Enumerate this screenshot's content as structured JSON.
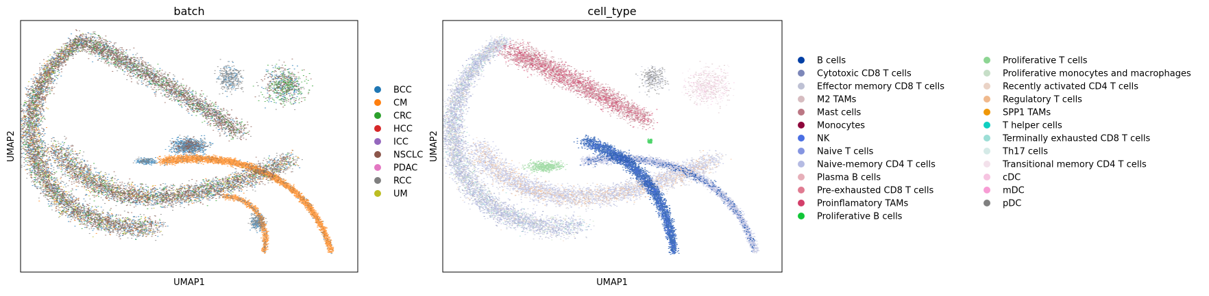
{
  "chart_data": [
    {
      "type": "scatter",
      "title": "batch",
      "xlabel": "UMAP1",
      "ylabel": "UMAP2",
      "grid": false,
      "legend_placement": "right",
      "series": [
        {
          "name": "BCC",
          "color": "#1f77b4"
        },
        {
          "name": "CM",
          "color": "#ff7f0e"
        },
        {
          "name": "CRC",
          "color": "#2ca02c"
        },
        {
          "name": "HCC",
          "color": "#d62728"
        },
        {
          "name": "ICC",
          "color": "#9467bd"
        },
        {
          "name": "NSCLC",
          "color": "#8c564b"
        },
        {
          "name": "PDAC",
          "color": "#e377c2"
        },
        {
          "name": "RCC",
          "color": "#7f7f7f"
        },
        {
          "name": "UM",
          "color": "#bcbd22"
        }
      ]
    },
    {
      "type": "scatter",
      "title": "cell_type",
      "xlabel": "UMAP1",
      "ylabel": "UMAP2",
      "grid": false,
      "legend_placement": "right",
      "series": [
        {
          "name": "B cells",
          "color": "#023fa5"
        },
        {
          "name": "Cytotoxic CD8 T cells",
          "color": "#7d87b9"
        },
        {
          "name": "Effector memory CD8 T cells",
          "color": "#bec1d4"
        },
        {
          "name": "M2 TAMs",
          "color": "#d6bcc0"
        },
        {
          "name": "Mast cells",
          "color": "#bb7784"
        },
        {
          "name": "Monocytes",
          "color": "#8e063b"
        },
        {
          "name": "NK",
          "color": "#4a6fe3"
        },
        {
          "name": "Naive T cells",
          "color": "#8595e1"
        },
        {
          "name": "Naive-memory CD4 T cells",
          "color": "#b5bbe3"
        },
        {
          "name": "Plasma B cells",
          "color": "#e6afb9"
        },
        {
          "name": "Pre-exhausted CD8 T cells",
          "color": "#e07b91"
        },
        {
          "name": "Proinflamatory TAMs",
          "color": "#d33f6a"
        },
        {
          "name": "Proliferative B cells",
          "color": "#11c638"
        },
        {
          "name": "Proliferative T cells",
          "color": "#8dd593"
        },
        {
          "name": "Proliferative monocytes and macrophages",
          "color": "#c6dec7"
        },
        {
          "name": "Recently activated CD4 T cells",
          "color": "#ead3c6"
        },
        {
          "name": "Regulatory T cells",
          "color": "#f0b98d"
        },
        {
          "name": "SPP1 TAMs",
          "color": "#ef9708"
        },
        {
          "name": "T helper cells",
          "color": "#0fcfc0"
        },
        {
          "name": "Terminally exhausted CD8 T cells",
          "color": "#9cded6"
        },
        {
          "name": "Th17 cells",
          "color": "#d5eae7"
        },
        {
          "name": "Transitional memory CD4 T cells",
          "color": "#f3e1eb"
        },
        {
          "name": "cDC",
          "color": "#f6c4e1"
        },
        {
          "name": "mDC",
          "color": "#f79cd4"
        },
        {
          "name": "pDC",
          "color": "#7f7f7f"
        }
      ]
    }
  ]
}
